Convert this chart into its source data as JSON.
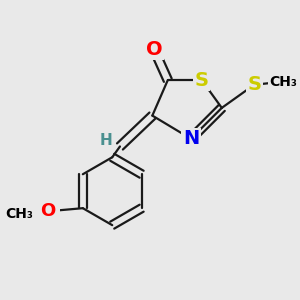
{
  "background_color": "#e9e9e9",
  "figsize": [
    3.0,
    3.0
  ],
  "dpi": 100,
  "atom_colors": {
    "O": "#ff0000",
    "S": "#cccc00",
    "N": "#0000ee",
    "C": "#000000",
    "H": "#4a9090"
  },
  "bond_color": "#1a1a1a",
  "bond_width": 1.6,
  "font_size_atoms": 13
}
